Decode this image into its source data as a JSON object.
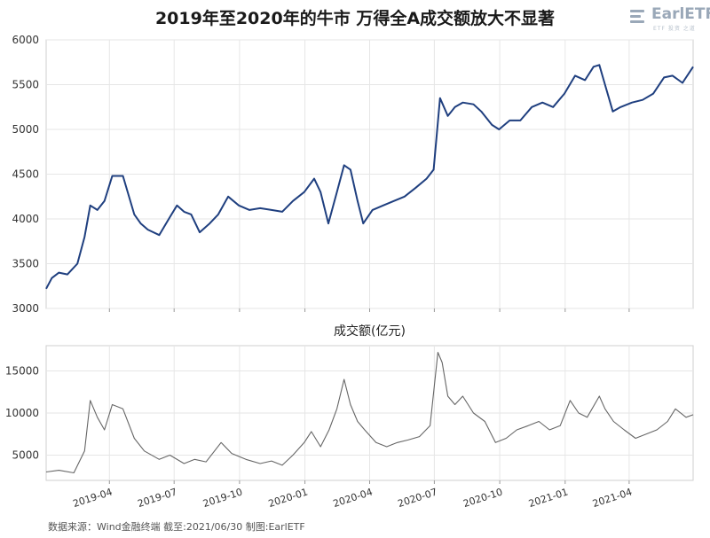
{
  "header": {
    "title": "2019年至2020年的牛市 万得全A成交额放大不显著",
    "logo_text": "EarlETF",
    "logo_subtext": "ETF 投资 之道"
  },
  "source": "数据来源：Wind金融终端 截至:2021/06/30 制图:EarlETF",
  "chart_data": [
    {
      "type": "line",
      "title": "",
      "ylabel": "",
      "ylim": [
        3000,
        6000
      ],
      "y_ticks": [
        3000,
        3500,
        4000,
        4500,
        5000,
        5500,
        6000
      ],
      "x_ticks": [
        "2019-04",
        "2019-07",
        "2019-10",
        "2020-01",
        "2020-04",
        "2020-07",
        "2020-10",
        "2021-01",
        "2021-04"
      ],
      "x_range": [
        "2019-01-02",
        "2021-06-30"
      ],
      "grid": true,
      "color": "#1f3f7f",
      "series": [
        {
          "values": [
            [
              "2019-01-02",
              3220
            ],
            [
              "2019-01-10",
              3340
            ],
            [
              "2019-01-20",
              3400
            ],
            [
              "2019-02-01",
              3380
            ],
            [
              "2019-02-15",
              3500
            ],
            [
              "2019-02-25",
              3800
            ],
            [
              "2019-03-05",
              4150
            ],
            [
              "2019-03-15",
              4100
            ],
            [
              "2019-03-25",
              4200
            ],
            [
              "2019-04-05",
              4480
            ],
            [
              "2019-04-20",
              4480
            ],
            [
              "2019-05-06",
              4050
            ],
            [
              "2019-05-15",
              3950
            ],
            [
              "2019-05-25",
              3880
            ],
            [
              "2019-06-10",
              3820
            ],
            [
              "2019-06-25",
              4020
            ],
            [
              "2019-07-05",
              4150
            ],
            [
              "2019-07-15",
              4080
            ],
            [
              "2019-07-25",
              4050
            ],
            [
              "2019-08-06",
              3850
            ],
            [
              "2019-08-20",
              3950
            ],
            [
              "2019-09-01",
              4050
            ],
            [
              "2019-09-15",
              4250
            ],
            [
              "2019-09-30",
              4150
            ],
            [
              "2019-10-15",
              4100
            ],
            [
              "2019-10-30",
              4120
            ],
            [
              "2019-11-15",
              4100
            ],
            [
              "2019-11-30",
              4080
            ],
            [
              "2019-12-15",
              4200
            ],
            [
              "2019-12-31",
              4300
            ],
            [
              "2020-01-14",
              4450
            ],
            [
              "2020-01-23",
              4300
            ],
            [
              "2020-02-03",
              3950
            ],
            [
              "2020-02-15",
              4300
            ],
            [
              "2020-02-25",
              4600
            ],
            [
              "2020-03-05",
              4550
            ],
            [
              "2020-03-15",
              4200
            ],
            [
              "2020-03-23",
              3950
            ],
            [
              "2020-04-05",
              4100
            ],
            [
              "2020-04-20",
              4150
            ],
            [
              "2020-05-05",
              4200
            ],
            [
              "2020-05-20",
              4250
            ],
            [
              "2020-06-05",
              4350
            ],
            [
              "2020-06-20",
              4450
            ],
            [
              "2020-06-30",
              4550
            ],
            [
              "2020-07-09",
              5350
            ],
            [
              "2020-07-20",
              5150
            ],
            [
              "2020-07-30",
              5250
            ],
            [
              "2020-08-10",
              5300
            ],
            [
              "2020-08-25",
              5280
            ],
            [
              "2020-09-05",
              5200
            ],
            [
              "2020-09-20",
              5050
            ],
            [
              "2020-09-30",
              5000
            ],
            [
              "2020-10-15",
              5100
            ],
            [
              "2020-10-30",
              5100
            ],
            [
              "2020-11-15",
              5250
            ],
            [
              "2020-11-30",
              5300
            ],
            [
              "2020-12-15",
              5250
            ],
            [
              "2020-12-31",
              5400
            ],
            [
              "2021-01-15",
              5600
            ],
            [
              "2021-01-29",
              5550
            ],
            [
              "2021-02-10",
              5700
            ],
            [
              "2021-02-18",
              5720
            ],
            [
              "2021-02-26",
              5500
            ],
            [
              "2021-03-09",
              5200
            ],
            [
              "2021-03-20",
              5250
            ],
            [
              "2021-04-05",
              5300
            ],
            [
              "2021-04-20",
              5330
            ],
            [
              "2021-05-05",
              5400
            ],
            [
              "2021-05-20",
              5580
            ],
            [
              "2021-06-01",
              5600
            ],
            [
              "2021-06-15",
              5520
            ],
            [
              "2021-06-30",
              5700
            ]
          ]
        }
      ]
    },
    {
      "type": "line",
      "title": "成交额(亿元)",
      "ylim": [
        2000,
        18000
      ],
      "y_ticks": [
        5000,
        10000,
        15000
      ],
      "x_ticks": [
        "2019-04",
        "2019-07",
        "2019-10",
        "2020-01",
        "2020-04",
        "2020-07",
        "2020-10",
        "2021-01",
        "2021-04"
      ],
      "x_range": [
        "2019-01-02",
        "2021-06-30"
      ],
      "grid": true,
      "color": "#666666",
      "series": [
        {
          "values": [
            [
              "2019-01-02",
              3000
            ],
            [
              "2019-01-20",
              3200
            ],
            [
              "2019-02-10",
              2900
            ],
            [
              "2019-02-25",
              5500
            ],
            [
              "2019-03-05",
              11500
            ],
            [
              "2019-03-15",
              9500
            ],
            [
              "2019-03-25",
              8000
            ],
            [
              "2019-04-05",
              11000
            ],
            [
              "2019-04-20",
              10500
            ],
            [
              "2019-05-06",
              7000
            ],
            [
              "2019-05-20",
              5500
            ],
            [
              "2019-06-10",
              4500
            ],
            [
              "2019-06-25",
              5000
            ],
            [
              "2019-07-15",
              4000
            ],
            [
              "2019-07-30",
              4500
            ],
            [
              "2019-08-15",
              4200
            ],
            [
              "2019-09-05",
              6500
            ],
            [
              "2019-09-20",
              5200
            ],
            [
              "2019-10-10",
              4500
            ],
            [
              "2019-10-30",
              4000
            ],
            [
              "2019-11-15",
              4300
            ],
            [
              "2019-11-30",
              3800
            ],
            [
              "2019-12-15",
              5000
            ],
            [
              "2019-12-31",
              6500
            ],
            [
              "2020-01-10",
              7800
            ],
            [
              "2020-01-23",
              6000
            ],
            [
              "2020-02-04",
              8000
            ],
            [
              "2020-02-15",
              10500
            ],
            [
              "2020-02-25",
              14000
            ],
            [
              "2020-03-05",
              11000
            ],
            [
              "2020-03-15",
              9000
            ],
            [
              "2020-03-25",
              8000
            ],
            [
              "2020-04-10",
              6500
            ],
            [
              "2020-04-25",
              6000
            ],
            [
              "2020-05-10",
              6500
            ],
            [
              "2020-05-25",
              6800
            ],
            [
              "2020-06-10",
              7200
            ],
            [
              "2020-06-25",
              8500
            ],
            [
              "2020-07-06",
              17200
            ],
            [
              "2020-07-12",
              16000
            ],
            [
              "2020-07-20",
              12000
            ],
            [
              "2020-07-30",
              11000
            ],
            [
              "2020-08-10",
              12000
            ],
            [
              "2020-08-25",
              10000
            ],
            [
              "2020-09-10",
              9000
            ],
            [
              "2020-09-25",
              6500
            ],
            [
              "2020-10-10",
              7000
            ],
            [
              "2020-10-25",
              8000
            ],
            [
              "2020-11-10",
              8500
            ],
            [
              "2020-11-25",
              9000
            ],
            [
              "2020-12-10",
              8000
            ],
            [
              "2020-12-25",
              8500
            ],
            [
              "2021-01-08",
              11500
            ],
            [
              "2021-01-20",
              10000
            ],
            [
              "2021-02-01",
              9500
            ],
            [
              "2021-02-18",
              12000
            ],
            [
              "2021-02-26",
              10500
            ],
            [
              "2021-03-10",
              9000
            ],
            [
              "2021-03-25",
              8000
            ],
            [
              "2021-04-10",
              7000
            ],
            [
              "2021-04-25",
              7500
            ],
            [
              "2021-05-10",
              8000
            ],
            [
              "2021-05-25",
              9000
            ],
            [
              "2021-06-05",
              10500
            ],
            [
              "2021-06-20",
              9500
            ],
            [
              "2021-06-30",
              9800
            ]
          ]
        }
      ]
    }
  ]
}
